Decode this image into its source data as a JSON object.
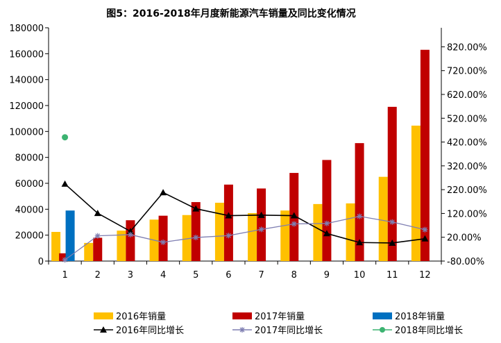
{
  "chart_data": {
    "type": "bar",
    "title": "图5：2016-2018年月度新能源汽车销量及同比变化情况",
    "categories": [
      "1",
      "2",
      "3",
      "4",
      "5",
      "6",
      "7",
      "8",
      "9",
      "10",
      "11",
      "12"
    ],
    "xlabel": "",
    "ylabel": "",
    "ylim": [
      0,
      180000
    ],
    "y_ticks": [
      "0",
      "20000",
      "40000",
      "60000",
      "80000",
      "100000",
      "120000",
      "140000",
      "160000",
      "180000"
    ],
    "y2lim": [
      -80,
      900
    ],
    "y2_ticks": [
      "-80.00%",
      "20.00%",
      "120.00%",
      "220.00%",
      "320.00%",
      "420.00%",
      "520.00%",
      "620.00%",
      "720.00%",
      "820.00%"
    ],
    "grid": false,
    "legend_position": "bottom",
    "series": [
      {
        "name": "2016年销量",
        "kind": "bar",
        "axis": "left",
        "color": "#FFC000",
        "values": [
          22500,
          14000,
          23500,
          32000,
          35500,
          45000,
          37000,
          39000,
          44000,
          44500,
          65000,
          104500
        ]
      },
      {
        "name": "2017年销量",
        "kind": "bar",
        "axis": "left",
        "color": "#C00000",
        "values": [
          6000,
          18000,
          31500,
          35000,
          45500,
          59000,
          56000,
          68000,
          78000,
          91000,
          119000,
          163000
        ]
      },
      {
        "name": "2018年销量",
        "kind": "bar",
        "axis": "left",
        "color": "#0070C0",
        "values": [
          39000,
          null,
          null,
          null,
          null,
          null,
          null,
          null,
          null,
          null,
          null,
          null
        ]
      },
      {
        "name": "2016年同比增长",
        "kind": "line",
        "axis": "right",
        "color": "#000000",
        "marker": "triangle",
        "values": [
          244,
          121,
          45,
          208,
          140,
          111,
          113,
          111,
          36,
          -2,
          -4,
          14
        ]
      },
      {
        "name": "2017年同比增长",
        "kind": "line",
        "axis": "right",
        "color": "#7F7FB2",
        "marker": "star",
        "values": [
          -75,
          26,
          31,
          -1,
          19,
          27,
          53,
          76,
          78,
          108,
          84,
          52
        ]
      },
      {
        "name": "2018年同比增长",
        "kind": "line",
        "axis": "right",
        "color": "#3CB371",
        "marker": "circle",
        "values": [
          440,
          null,
          null,
          null,
          null,
          null,
          null,
          null,
          null,
          null,
          null,
          null
        ]
      }
    ]
  }
}
